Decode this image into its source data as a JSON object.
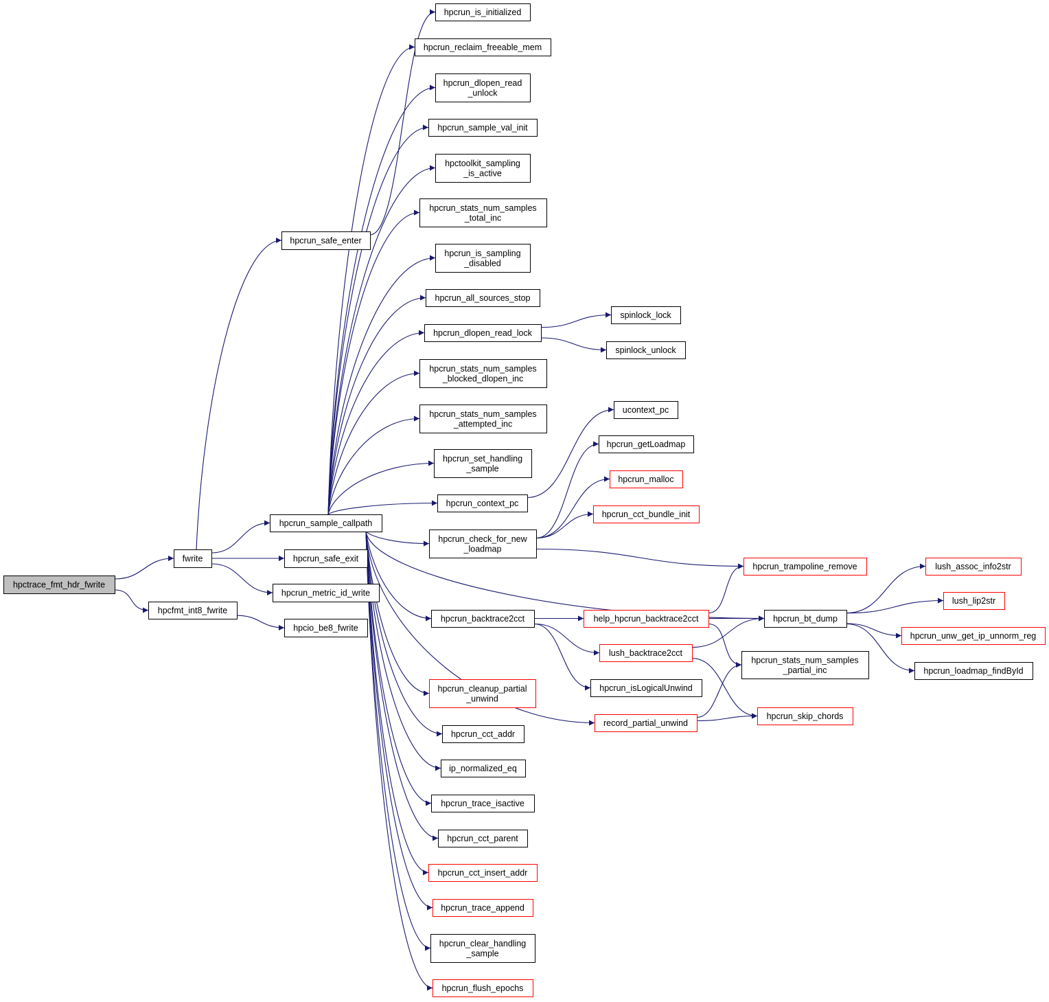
{
  "colors": {
    "edge": "#191970",
    "root_fill": "#bfbfbf",
    "normal_border": "#000000",
    "truncated_border": "#ff0000"
  },
  "nodes": [
    {
      "id": "root",
      "lines": [
        "hpctrace_fmt_hdr_fwrite"
      ],
      "red": false,
      "root": true
    },
    {
      "id": "fwrite",
      "lines": [
        "fwrite"
      ],
      "red": false
    },
    {
      "id": "int8",
      "lines": [
        "hpcfmt_int8_fwrite"
      ],
      "red": false
    },
    {
      "id": "sample",
      "lines": [
        "hpcrun_sample_callpath"
      ],
      "red": false
    },
    {
      "id": "safe_exit",
      "lines": [
        "hpcrun_safe_exit"
      ],
      "red": false
    },
    {
      "id": "metric",
      "lines": [
        "hpcrun_metric_id_write"
      ],
      "red": false
    },
    {
      "id": "be8",
      "lines": [
        "hpcio_be8_fwrite"
      ],
      "red": false
    },
    {
      "id": "safe_enter",
      "lines": [
        "hpcrun_safe_enter"
      ],
      "red": false
    },
    {
      "id": "is_init",
      "lines": [
        "hpcrun_is_initialized"
      ],
      "red": false
    },
    {
      "id": "reclaim",
      "lines": [
        "hpcrun_reclaim_freeable_mem"
      ],
      "red": false
    },
    {
      "id": "dl_unlock",
      "lines": [
        "hpcrun_dlopen_read",
        "_unlock"
      ],
      "red": false
    },
    {
      "id": "val_init",
      "lines": [
        "hpcrun_sample_val_init"
      ],
      "red": false
    },
    {
      "id": "sampling_active",
      "lines": [
        "hpctoolkit_sampling",
        "_is_active"
      ],
      "red": false
    },
    {
      "id": "total_inc",
      "lines": [
        "hpcrun_stats_num_samples",
        "_total_inc"
      ],
      "red": false
    },
    {
      "id": "disabled",
      "lines": [
        "hpcrun_is_sampling",
        "_disabled"
      ],
      "red": false
    },
    {
      "id": "all_stop",
      "lines": [
        "hpcrun_all_sources_stop"
      ],
      "red": false
    },
    {
      "id": "dl_lock",
      "lines": [
        "hpcrun_dlopen_read_lock"
      ],
      "red": false
    },
    {
      "id": "blocked_inc",
      "lines": [
        "hpcrun_stats_num_samples",
        "_blocked_dlopen_inc"
      ],
      "red": false
    },
    {
      "id": "attempted_inc",
      "lines": [
        "hpcrun_stats_num_samples",
        "_attempted_inc"
      ],
      "red": false
    },
    {
      "id": "set_handling",
      "lines": [
        "hpcrun_set_handling",
        "_sample"
      ],
      "red": false
    },
    {
      "id": "context_pc",
      "lines": [
        "hpcrun_context_pc"
      ],
      "red": false
    },
    {
      "id": "check_loadmap",
      "lines": [
        "hpcrun_check_for_new",
        "_loadmap"
      ],
      "red": false
    },
    {
      "id": "bt2cct",
      "lines": [
        "hpcrun_backtrace2cct"
      ],
      "red": false
    },
    {
      "id": "cleanup",
      "lines": [
        "hpcrun_cleanup_partial",
        "_unwind"
      ],
      "red": true
    },
    {
      "id": "cct_addr",
      "lines": [
        "hpcrun_cct_addr"
      ],
      "red": false
    },
    {
      "id": "ip_eq",
      "lines": [
        "ip_normalized_eq"
      ],
      "red": false
    },
    {
      "id": "trace_isactive",
      "lines": [
        "hpcrun_trace_isactive"
      ],
      "red": false
    },
    {
      "id": "cct_parent",
      "lines": [
        "hpcrun_cct_parent"
      ],
      "red": false
    },
    {
      "id": "cct_insert",
      "lines": [
        "hpcrun_cct_insert_addr"
      ],
      "red": true
    },
    {
      "id": "trace_append",
      "lines": [
        "hpcrun_trace_append"
      ],
      "red": true
    },
    {
      "id": "clear_handling",
      "lines": [
        "hpcrun_clear_handling",
        "_sample"
      ],
      "red": false
    },
    {
      "id": "flush",
      "lines": [
        "hpcrun_flush_epochs"
      ],
      "red": true
    },
    {
      "id": "spin_lock",
      "lines": [
        "spinlock_lock"
      ],
      "red": false
    },
    {
      "id": "spin_unlock",
      "lines": [
        "spinlock_unlock"
      ],
      "red": false
    },
    {
      "id": "ucontext",
      "lines": [
        "ucontext_pc"
      ],
      "red": false
    },
    {
      "id": "getloadmap",
      "lines": [
        "hpcrun_getLoadmap"
      ],
      "red": false
    },
    {
      "id": "malloc",
      "lines": [
        "hpcrun_malloc"
      ],
      "red": true
    },
    {
      "id": "bundle_init",
      "lines": [
        "hpcrun_cct_bundle_init"
      ],
      "red": true
    },
    {
      "id": "tramp",
      "lines": [
        "hpcrun_trampoline_remove"
      ],
      "red": true
    },
    {
      "id": "help_bt",
      "lines": [
        "help_hpcrun_backtrace2cct"
      ],
      "red": true
    },
    {
      "id": "lush_bt",
      "lines": [
        "lush_backtrace2cct"
      ],
      "red": true
    },
    {
      "id": "logical",
      "lines": [
        "hpcrun_isLogicalUnwind"
      ],
      "red": false
    },
    {
      "id": "record_partial",
      "lines": [
        "record_partial_unwind"
      ],
      "red": true
    },
    {
      "id": "bt_dump",
      "lines": [
        "hpcrun_bt_dump"
      ],
      "red": false
    },
    {
      "id": "partial_inc",
      "lines": [
        "hpcrun_stats_num_samples",
        "_partial_inc"
      ],
      "red": false
    },
    {
      "id": "skip_chords",
      "lines": [
        "hpcrun_skip_chords"
      ],
      "red": true
    },
    {
      "id": "lush_assoc",
      "lines": [
        "lush_assoc_info2str"
      ],
      "red": true
    },
    {
      "id": "lip2str",
      "lines": [
        "lush_lip2str"
      ],
      "red": true
    },
    {
      "id": "unw_get",
      "lines": [
        "hpcrun_unw_get_ip_unnorm_reg"
      ],
      "red": true
    },
    {
      "id": "findbyid",
      "lines": [
        "hpcrun_loadmap_findById"
      ],
      "red": false
    }
  ],
  "edges": [
    [
      "root",
      "fwrite"
    ],
    [
      "root",
      "int8"
    ],
    [
      "fwrite",
      "safe_enter"
    ],
    [
      "fwrite",
      "sample"
    ],
    [
      "fwrite",
      "safe_exit"
    ],
    [
      "fwrite",
      "metric"
    ],
    [
      "int8",
      "be8"
    ],
    [
      "safe_enter",
      "is_init"
    ],
    [
      "sample",
      "reclaim"
    ],
    [
      "sample",
      "dl_unlock"
    ],
    [
      "sample",
      "val_init"
    ],
    [
      "sample",
      "sampling_active"
    ],
    [
      "sample",
      "total_inc"
    ],
    [
      "sample",
      "disabled"
    ],
    [
      "sample",
      "all_stop"
    ],
    [
      "sample",
      "dl_lock"
    ],
    [
      "sample",
      "blocked_inc"
    ],
    [
      "sample",
      "attempted_inc"
    ],
    [
      "sample",
      "set_handling"
    ],
    [
      "sample",
      "context_pc"
    ],
    [
      "sample",
      "check_loadmap"
    ],
    [
      "sample",
      "bt2cct"
    ],
    [
      "sample",
      "cleanup"
    ],
    [
      "sample",
      "cct_addr"
    ],
    [
      "sample",
      "ip_eq"
    ],
    [
      "sample",
      "trace_isactive"
    ],
    [
      "sample",
      "cct_parent"
    ],
    [
      "sample",
      "cct_insert"
    ],
    [
      "sample",
      "trace_append"
    ],
    [
      "sample",
      "clear_handling"
    ],
    [
      "sample",
      "flush"
    ],
    [
      "sample",
      "bt_dump"
    ],
    [
      "sample",
      "record_partial"
    ],
    [
      "dl_lock",
      "spin_lock"
    ],
    [
      "dl_lock",
      "spin_unlock"
    ],
    [
      "context_pc",
      "ucontext"
    ],
    [
      "check_loadmap",
      "getloadmap"
    ],
    [
      "check_loadmap",
      "malloc"
    ],
    [
      "check_loadmap",
      "bundle_init"
    ],
    [
      "check_loadmap",
      "tramp"
    ],
    [
      "bt2cct",
      "help_bt"
    ],
    [
      "bt2cct",
      "lush_bt"
    ],
    [
      "bt2cct",
      "logical"
    ],
    [
      "help_bt",
      "tramp"
    ],
    [
      "help_bt",
      "bt_dump"
    ],
    [
      "help_bt",
      "partial_inc"
    ],
    [
      "lush_bt",
      "bt_dump"
    ],
    [
      "lush_bt",
      "skip_chords"
    ],
    [
      "record_partial",
      "partial_inc"
    ],
    [
      "record_partial",
      "skip_chords"
    ],
    [
      "bt_dump",
      "lush_assoc"
    ],
    [
      "bt_dump",
      "lip2str"
    ],
    [
      "bt_dump",
      "unw_get"
    ],
    [
      "bt_dump",
      "findbyid"
    ]
  ]
}
